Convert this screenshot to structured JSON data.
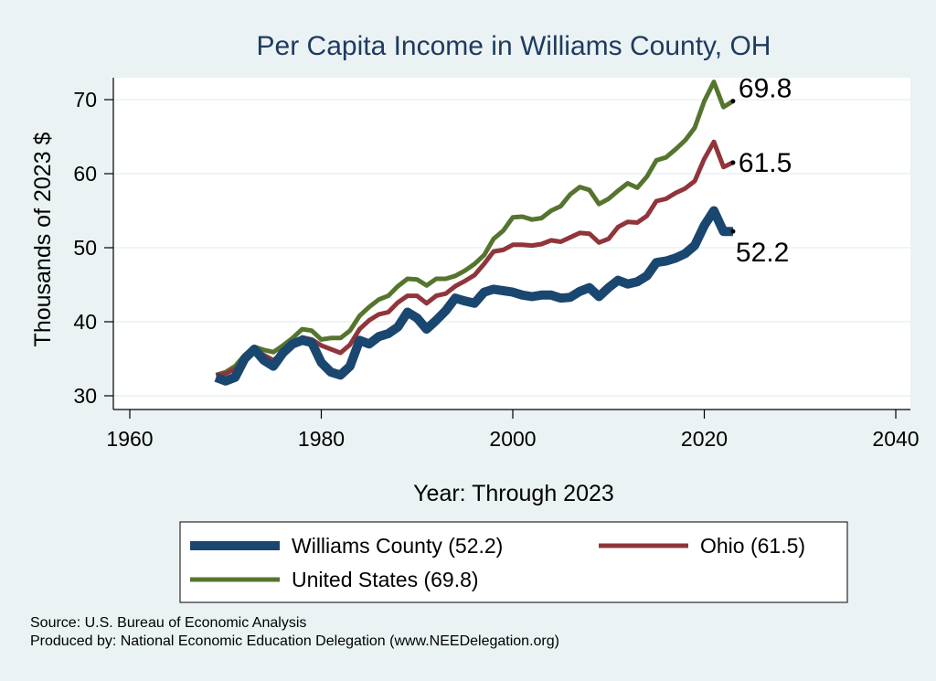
{
  "chart_data": {
    "type": "line",
    "title": "Per Capita Income in Williams County, OH",
    "xlabel": "Year: Through 2023",
    "ylabel": "Thousands of 2023 $",
    "xlim": [
      1960,
      2040
    ],
    "ylim": [
      30,
      75
    ],
    "xticks": [
      "1960",
      "1980",
      "2000",
      "2020",
      "2040"
    ],
    "yticks": [
      "30",
      "40",
      "50",
      "60",
      "70"
    ],
    "grid": true,
    "legend_position": "bottom",
    "x": [
      1969,
      1970,
      1971,
      1972,
      1973,
      1974,
      1975,
      1976,
      1977,
      1978,
      1979,
      1980,
      1981,
      1982,
      1983,
      1984,
      1985,
      1986,
      1987,
      1988,
      1989,
      1990,
      1991,
      1992,
      1993,
      1994,
      1995,
      1996,
      1997,
      1998,
      1999,
      2000,
      2001,
      2002,
      2003,
      2004,
      2005,
      2006,
      2007,
      2008,
      2009,
      2010,
      2011,
      2012,
      2013,
      2014,
      2015,
      2016,
      2017,
      2018,
      2019,
      2020,
      2021,
      2022,
      2023
    ],
    "series": [
      {
        "name": "Williams County (52.2)",
        "color": "#1a476f",
        "end_label": "52.2",
        "values": [
          32.5,
          32.0,
          32.5,
          35.0,
          36.3,
          34.8,
          34.0,
          35.8,
          37.0,
          37.5,
          37.2,
          34.5,
          33.2,
          32.8,
          34.0,
          37.5,
          37.0,
          38.0,
          38.4,
          39.3,
          41.3,
          40.5,
          39.0,
          40.2,
          41.5,
          43.2,
          42.8,
          42.5,
          44.0,
          44.4,
          44.2,
          44.0,
          43.6,
          43.4,
          43.6,
          43.6,
          43.2,
          43.3,
          44.1,
          44.6,
          43.4,
          44.6,
          45.6,
          45.1,
          45.4,
          46.2,
          48.0,
          48.2,
          48.6,
          49.2,
          50.3,
          53.0,
          55.0,
          52.2,
          52.2
        ]
      },
      {
        "name": "Ohio (61.5)",
        "color": "#90353b",
        "end_label": "61.5",
        "values": [
          32.8,
          33.0,
          33.6,
          35.0,
          36.2,
          35.5,
          34.8,
          35.8,
          36.8,
          37.9,
          37.6,
          36.8,
          36.3,
          35.8,
          36.9,
          39.0,
          40.2,
          41.0,
          41.3,
          42.6,
          43.5,
          43.5,
          42.5,
          43.5,
          43.8,
          44.8,
          45.5,
          46.3,
          47.8,
          49.5,
          49.7,
          50.4,
          50.4,
          50.3,
          50.5,
          51.0,
          50.8,
          51.4,
          52.0,
          51.9,
          50.7,
          51.2,
          52.8,
          53.5,
          53.4,
          54.3,
          56.3,
          56.6,
          57.4,
          58.0,
          59.0,
          62.0,
          64.3,
          60.9,
          61.5
        ]
      },
      {
        "name": "United States (69.8)",
        "color": "#55752f",
        "end_label": "69.8",
        "values": [
          32.8,
          33.2,
          34.0,
          35.5,
          36.6,
          36.2,
          35.9,
          36.8,
          37.8,
          39.0,
          38.8,
          37.6,
          37.8,
          37.8,
          38.8,
          40.8,
          42.0,
          43.0,
          43.5,
          44.8,
          45.8,
          45.7,
          44.9,
          45.8,
          45.8,
          46.2,
          46.9,
          47.8,
          49.0,
          51.2,
          52.3,
          54.1,
          54.2,
          53.8,
          54.0,
          55.0,
          55.6,
          57.2,
          58.2,
          57.8,
          55.9,
          56.6,
          57.7,
          58.7,
          58.1,
          59.6,
          61.8,
          62.2,
          63.3,
          64.5,
          66.2,
          69.8,
          72.4,
          69.0,
          69.8
        ]
      }
    ]
  },
  "footer": {
    "source": "Source: U.S. Bureau of Economic Analysis",
    "produced_by": "Produced by: National Economic Education Delegation (www.NEEDelegation.org)"
  }
}
